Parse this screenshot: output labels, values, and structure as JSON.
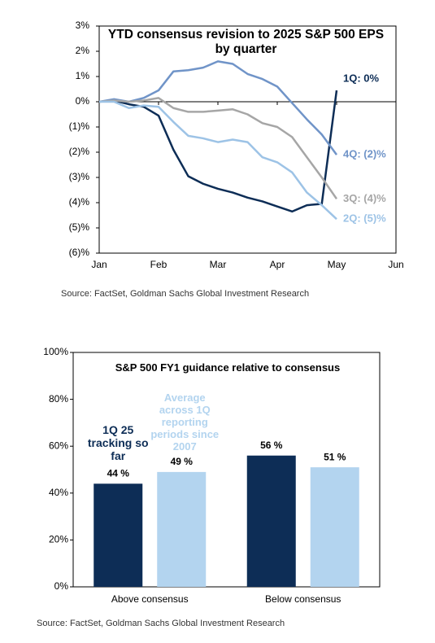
{
  "chart_data": [
    {
      "type": "line",
      "title": "YTD consensus revision to 2025 S&P 500 EPS by quarter",
      "source": "Source: FactSet, Goldman Sachs Global Investment Research",
      "x": [
        0,
        0.25,
        0.5,
        0.75,
        1,
        1.25,
        1.5,
        1.75,
        2,
        2.25,
        2.5,
        2.75,
        3,
        3.25,
        3.5,
        3.75,
        4
      ],
      "xlim": [
        0,
        5
      ],
      "xticks": [
        {
          "value": 0,
          "label": "Jan"
        },
        {
          "value": 1,
          "label": "Feb"
        },
        {
          "value": 2,
          "label": "Mar"
        },
        {
          "value": 3,
          "label": "Apr"
        },
        {
          "value": 4,
          "label": "May"
        },
        {
          "value": 5,
          "label": "Jun"
        }
      ],
      "ylim": [
        -6,
        3
      ],
      "yticks": [
        {
          "value": 3,
          "label": "3%"
        },
        {
          "value": 2,
          "label": "2%"
        },
        {
          "value": 1,
          "label": "1%"
        },
        {
          "value": 0,
          "label": "0%"
        },
        {
          "value": -1,
          "label": "(1)%"
        },
        {
          "value": -2,
          "label": "(2)%"
        },
        {
          "value": -3,
          "label": "(3)%"
        },
        {
          "value": -4,
          "label": "(4)%"
        },
        {
          "value": -5,
          "label": "(5)%"
        },
        {
          "value": -6,
          "label": "(6)%"
        }
      ],
      "series": [
        {
          "name": "1Q: 0%",
          "color": "#0d2d56",
          "values": [
            0,
            0.05,
            -0.1,
            -0.2,
            -0.55,
            -1.9,
            -2.95,
            -3.25,
            -3.45,
            -3.6,
            -3.8,
            -3.95,
            -4.15,
            -4.35,
            -4.1,
            -4.05,
            0.45
          ]
        },
        {
          "name": "4Q: (2)%",
          "color": "#7094c8",
          "values": [
            0,
            0.1,
            0,
            0.15,
            0.45,
            1.2,
            1.25,
            1.35,
            1.6,
            1.5,
            1.1,
            0.9,
            0.6,
            -0.05,
            -0.7,
            -1.3,
            -2.1
          ]
        },
        {
          "name": "3Q: (4)%",
          "color": "#a6a6a6",
          "values": [
            0,
            0.05,
            0,
            0.05,
            0.15,
            -0.25,
            -0.4,
            -0.4,
            -0.35,
            -0.3,
            -0.5,
            -0.85,
            -1.0,
            -1.4,
            -2.2,
            -3.0,
            -3.85
          ]
        },
        {
          "name": "2Q: (5)%",
          "color": "#9dc3e6",
          "values": [
            0,
            0,
            -0.25,
            -0.15,
            -0.2,
            -0.8,
            -1.35,
            -1.45,
            -1.6,
            -1.5,
            -1.6,
            -2.2,
            -2.4,
            -2.8,
            -3.6,
            -4.1,
            -4.65
          ]
        }
      ]
    },
    {
      "type": "bar",
      "title": "S&P 500 FY1 guidance relative to consensus",
      "source": "Source: FactSet, Goldman Sachs Global Investment Research",
      "categories": [
        "Above consensus",
        "Below consensus"
      ],
      "ylim": [
        0,
        100
      ],
      "yticks": [
        {
          "value": 0,
          "label": "0%"
        },
        {
          "value": 20,
          "label": "20%"
        },
        {
          "value": 40,
          "label": "40%"
        },
        {
          "value": 60,
          "label": "60%"
        },
        {
          "value": 80,
          "label": "80%"
        },
        {
          "value": 100,
          "label": "100%"
        }
      ],
      "series": [
        {
          "name": "1Q 25 tracking so far",
          "color": "#0d2d56",
          "values": [
            44,
            56
          ],
          "value_labels": [
            "44 %",
            "56 %"
          ]
        },
        {
          "name": "Average across 1Q reporting periods since 2007",
          "color": "#b3d4ef",
          "values": [
            49,
            51
          ],
          "value_labels": [
            "49 %",
            "51 %"
          ]
        }
      ]
    }
  ]
}
